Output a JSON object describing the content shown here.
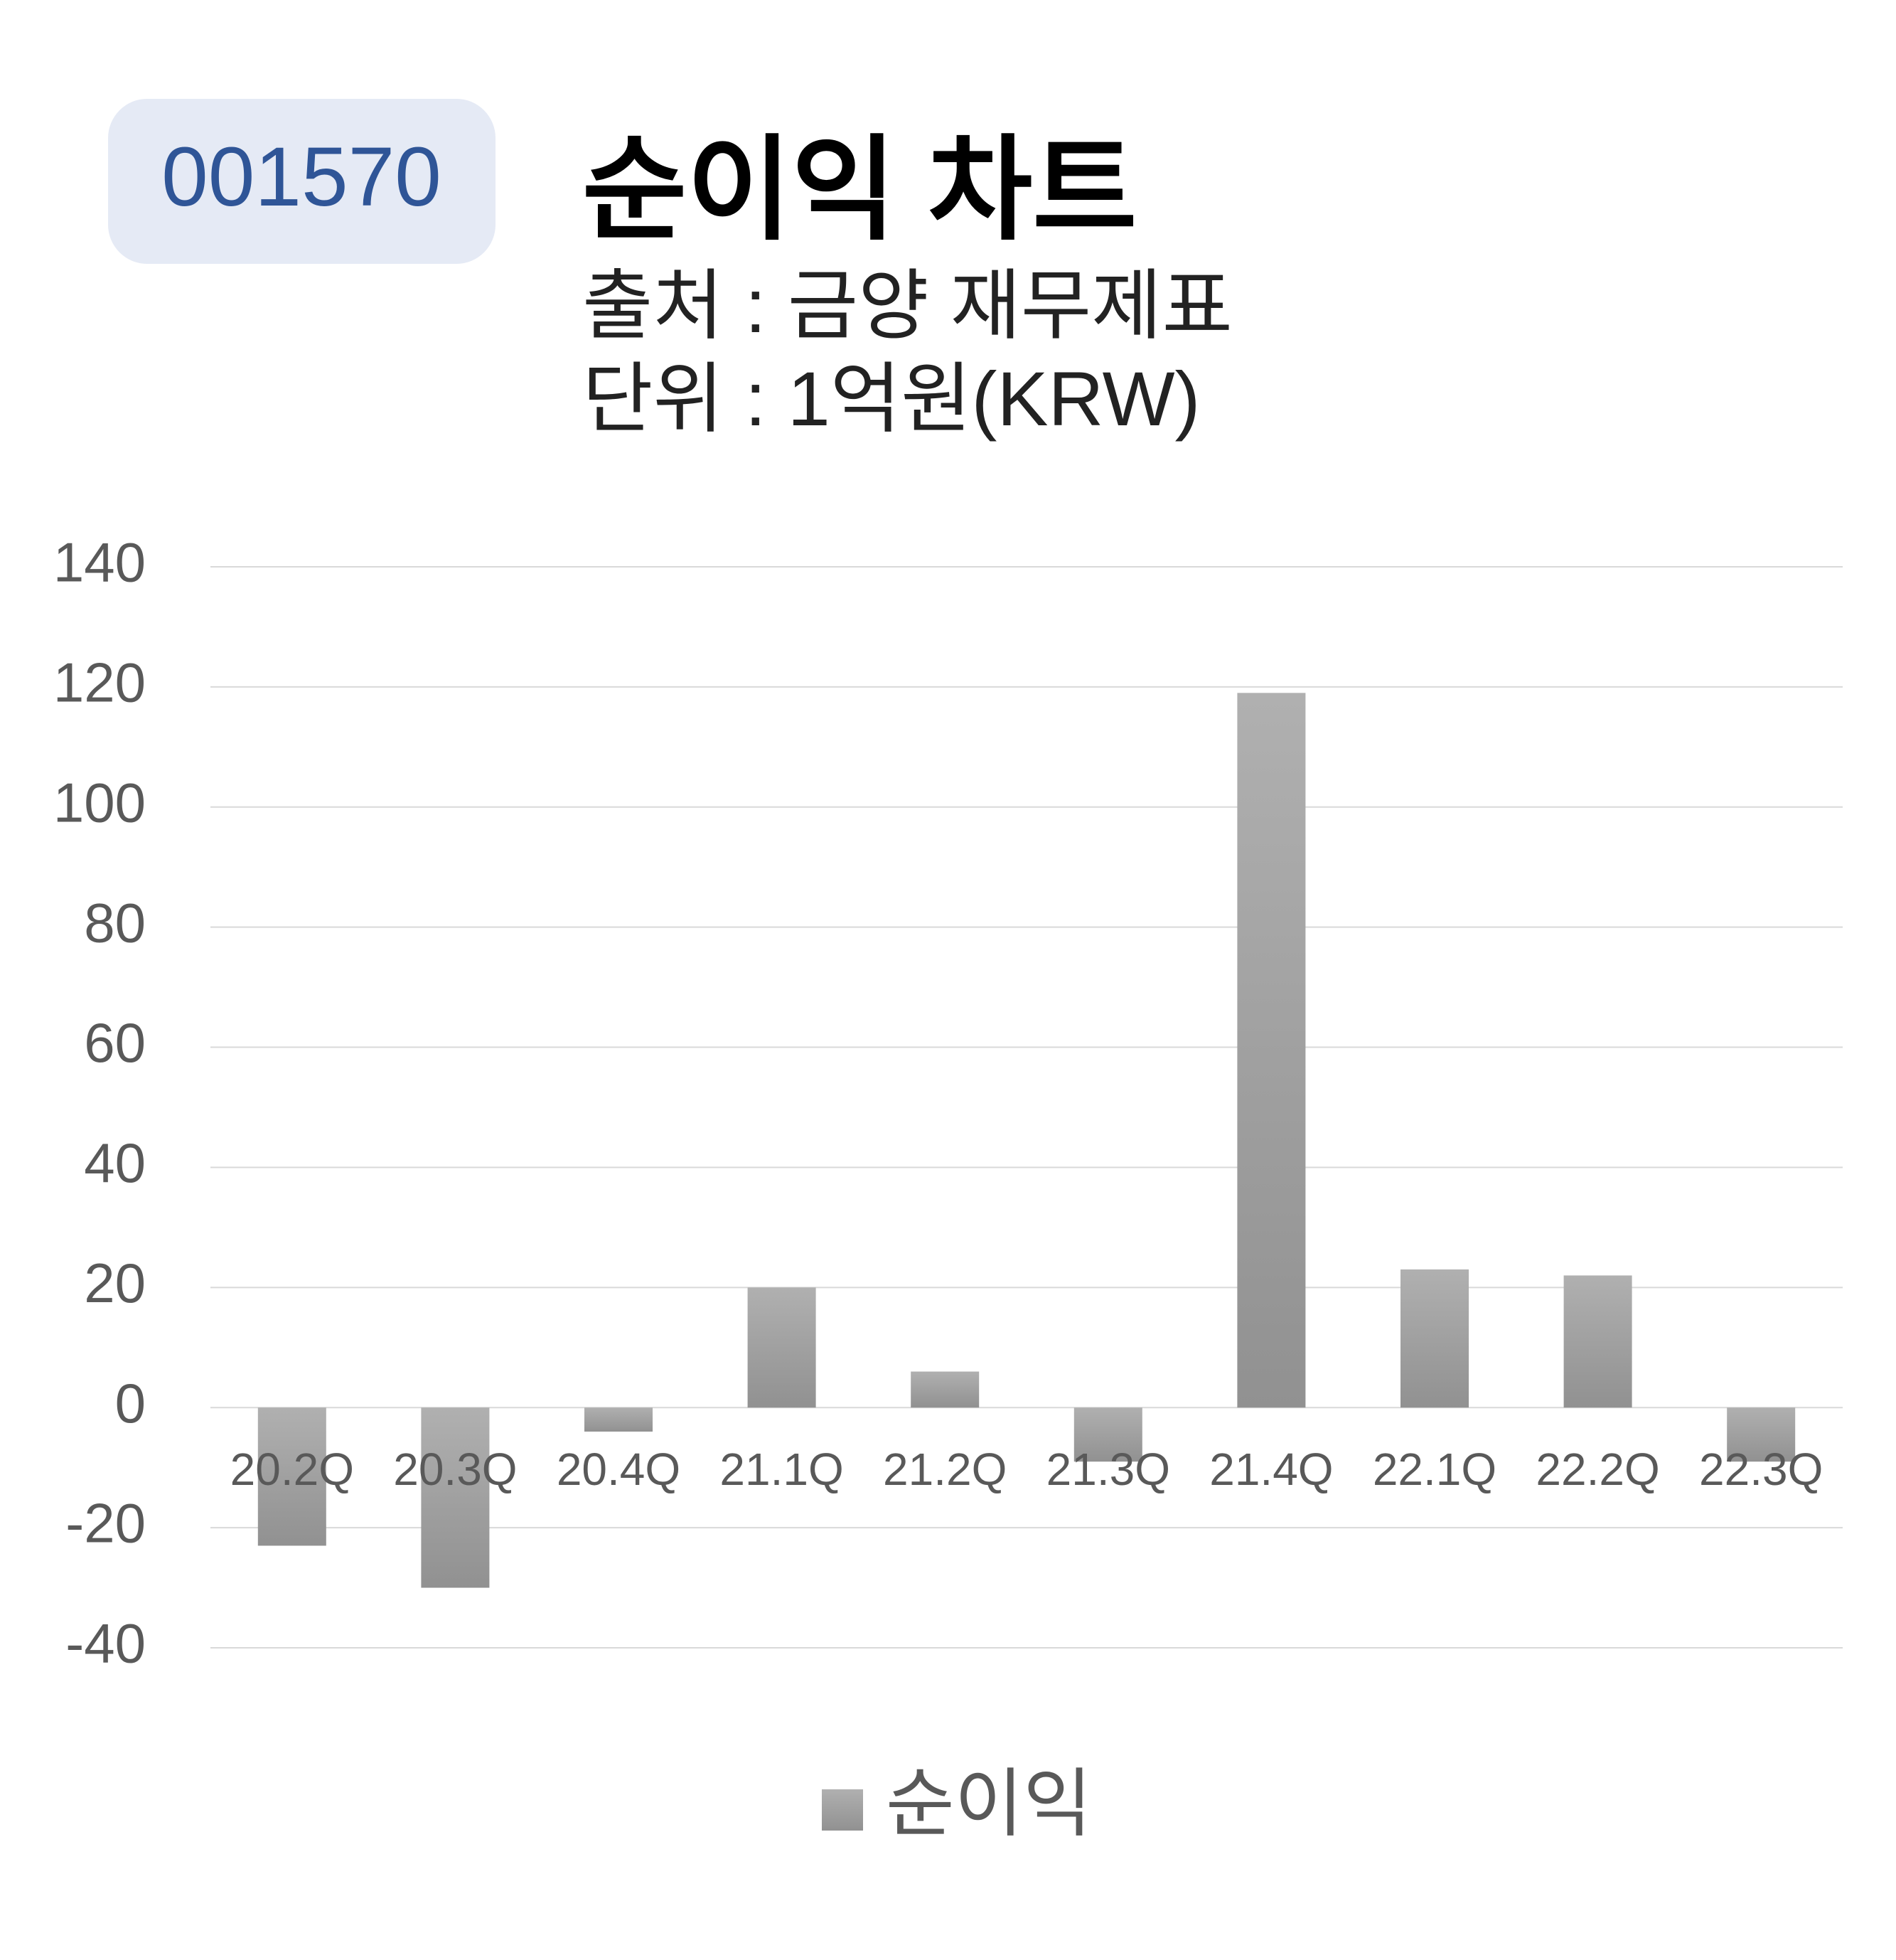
{
  "code": "001570",
  "chart_data": {
    "type": "bar",
    "title": "순이익 차트",
    "subtitle": [
      "출처 : 금양 재무제표",
      "단위 : 1억원(KRW)"
    ],
    "categories": [
      "20.2Q",
      "20.3Q",
      "20.4Q",
      "21.1Q",
      "21.2Q",
      "21.3Q",
      "21.4Q",
      "22.1Q",
      "22.2Q",
      "22.3Q"
    ],
    "series": [
      {
        "name": "순이익",
        "color": "#a6a6a6",
        "values": [
          -23,
          -30,
          -4,
          20,
          6,
          -9,
          119,
          23,
          22,
          -9
        ]
      }
    ],
    "ylim": [
      -40,
      140
    ],
    "yticks": [
      -40,
      -20,
      0,
      20,
      40,
      60,
      80,
      100,
      120,
      140
    ],
    "grid": true,
    "legend": "bottom"
  }
}
